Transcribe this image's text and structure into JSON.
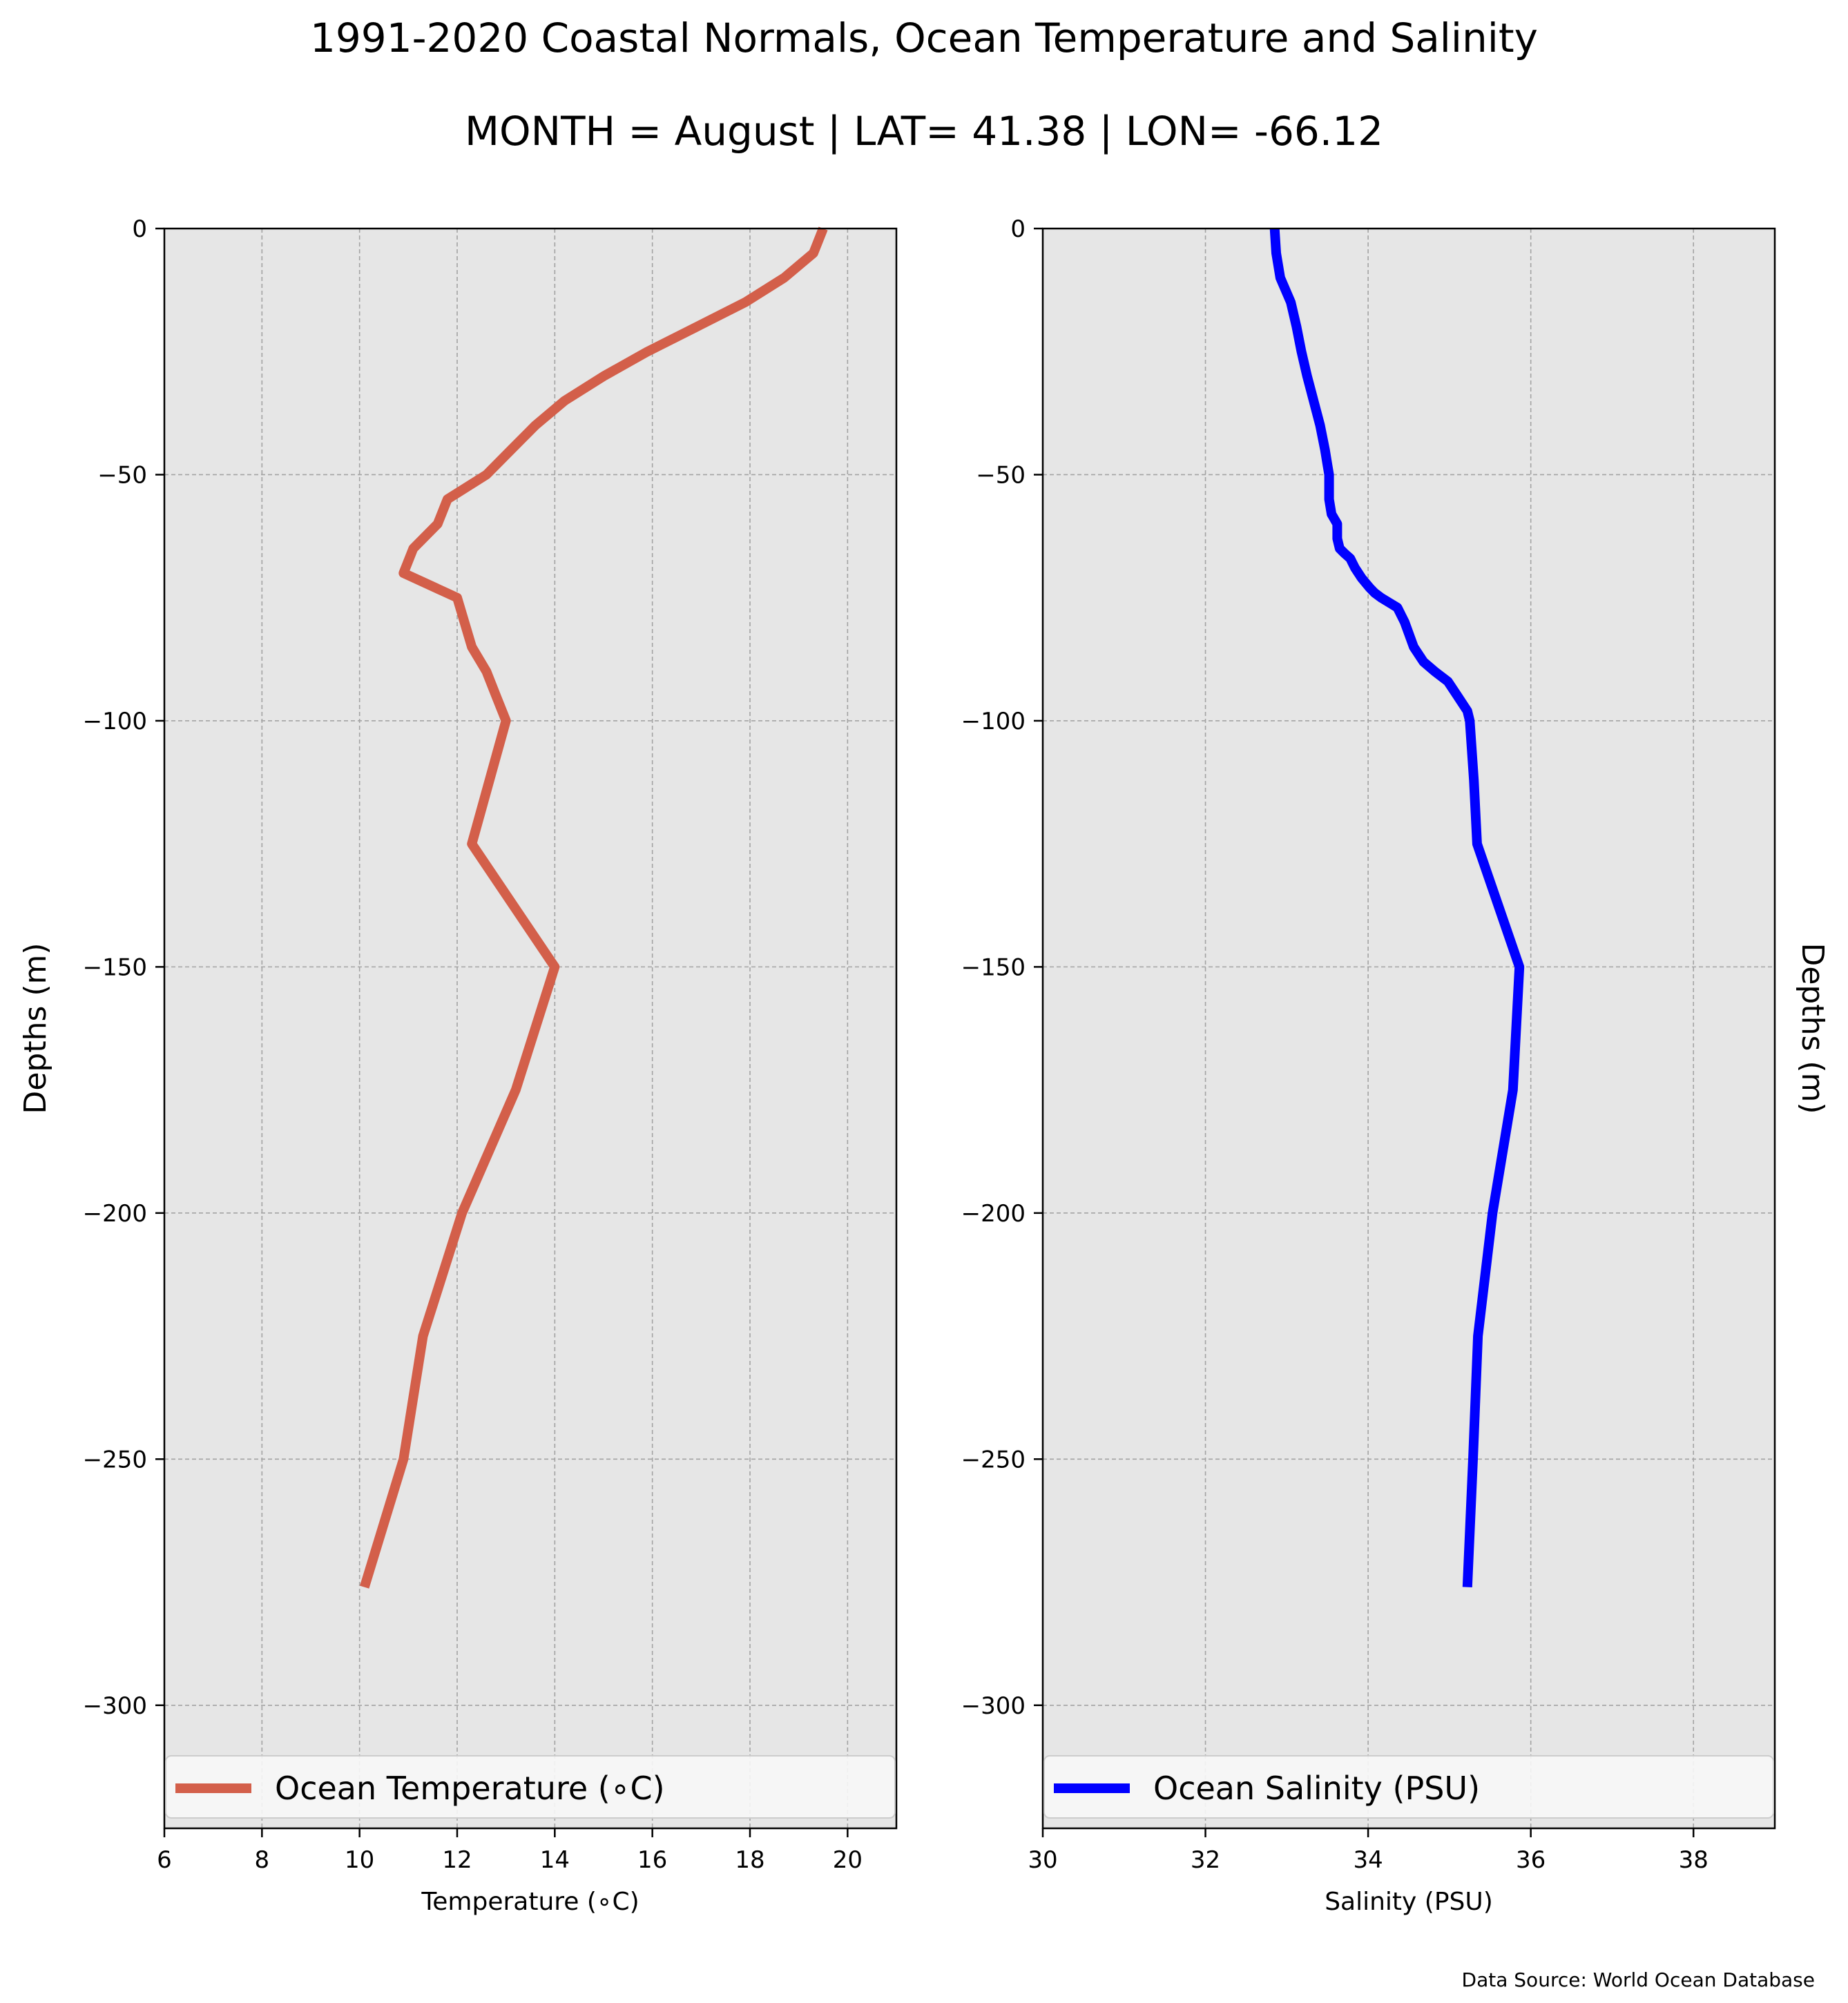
{
  "title": "1991-2020 Coastal Normals, Ocean Temperature and Salinity",
  "subtitle": "MONTH = August | LAT= 41.38 | LON= -66.12",
  "source": "Data Source: World Ocean Database",
  "chart_data": [
    {
      "type": "line",
      "xlabel": "Temperature (∘C)",
      "ylabel": "Depths (m)",
      "xlim": [
        6,
        21
      ],
      "ylim": [
        -325,
        0
      ],
      "xticks": [
        6,
        8,
        10,
        12,
        14,
        16,
        18,
        20
      ],
      "xtick_labels": [
        "6",
        "8",
        "10",
        "12",
        "14",
        "16",
        "18",
        "20"
      ],
      "yticks": [
        0,
        -50,
        -100,
        -150,
        -200,
        -250,
        -300
      ],
      "ytick_labels": [
        "0",
        "−50",
        "−100",
        "−150",
        "−200",
        "−250",
        "−300"
      ],
      "grid": true,
      "background": "#e6e6e6",
      "legend_position": "bottom",
      "series": [
        {
          "name": "Ocean Temperature (∘C)",
          "color": "#d35f4a",
          "x": [
            19.5,
            19.3,
            18.7,
            17.9,
            16.9,
            15.9,
            15.0,
            14.2,
            13.6,
            13.1,
            12.6,
            11.8,
            11.6,
            11.1,
            10.9,
            12.0,
            12.3,
            12.6,
            12.8,
            13.0,
            12.3,
            14.0,
            13.2,
            12.1,
            11.3,
            10.9,
            10.1
          ],
          "y": [
            0,
            -5,
            -10,
            -15,
            -20,
            -25,
            -30,
            -35,
            -40,
            -45,
            -50,
            -55,
            -60,
            -65,
            -70,
            -75,
            -85,
            -90,
            -95,
            -100,
            -125,
            -150,
            -175,
            -200,
            -225,
            -250,
            -276
          ]
        }
      ]
    },
    {
      "type": "line",
      "xlabel": "Salinity (PSU)",
      "ylabel": "Depths (m)",
      "xlim": [
        30,
        39
      ],
      "ylim": [
        -325,
        0
      ],
      "xticks": [
        30,
        32,
        34,
        36,
        38
      ],
      "xtick_labels": [
        "30",
        "32",
        "34",
        "36",
        "38"
      ],
      "yticks": [
        0,
        -50,
        -100,
        -150,
        -200,
        -250,
        -300
      ],
      "ytick_labels": [
        "0",
        "−50",
        "−100",
        "−150",
        "−200",
        "−250",
        "−300"
      ],
      "grid": true,
      "background": "#e6e6e6",
      "legend_position": "bottom",
      "series": [
        {
          "name": "Ocean Salinity (PSU)",
          "color": "#0000ff",
          "x": [
            32.85,
            32.87,
            32.92,
            33.05,
            33.12,
            33.18,
            33.25,
            33.33,
            33.41,
            33.47,
            33.5,
            33.52,
            33.52,
            33.52,
            33.55,
            33.62,
            33.62,
            33.65,
            33.71,
            33.78,
            33.81,
            33.84,
            33.88,
            33.92,
            33.97,
            34.02,
            34.08,
            34.16,
            34.26,
            34.36,
            34.45,
            34.56,
            34.68,
            34.82,
            34.98,
            35.1,
            35.22,
            35.25,
            35.3,
            35.34,
            35.86,
            35.78,
            35.53,
            35.35,
            35.29,
            35.22
          ],
          "y": [
            0,
            -5,
            -10,
            -15,
            -20,
            -25,
            -30,
            -35,
            -40,
            -45,
            -48,
            -50,
            -53,
            -55,
            -58,
            -60,
            -63,
            -65,
            -66,
            -67,
            -68,
            -69,
            -70,
            -71,
            -72,
            -73,
            -74,
            -75,
            -76,
            -77,
            -80,
            -85,
            -88,
            -90,
            -92,
            -95,
            -98,
            -100,
            -112,
            -125,
            -150,
            -175,
            -200,
            -225,
            -250,
            -276
          ]
        }
      ]
    }
  ]
}
